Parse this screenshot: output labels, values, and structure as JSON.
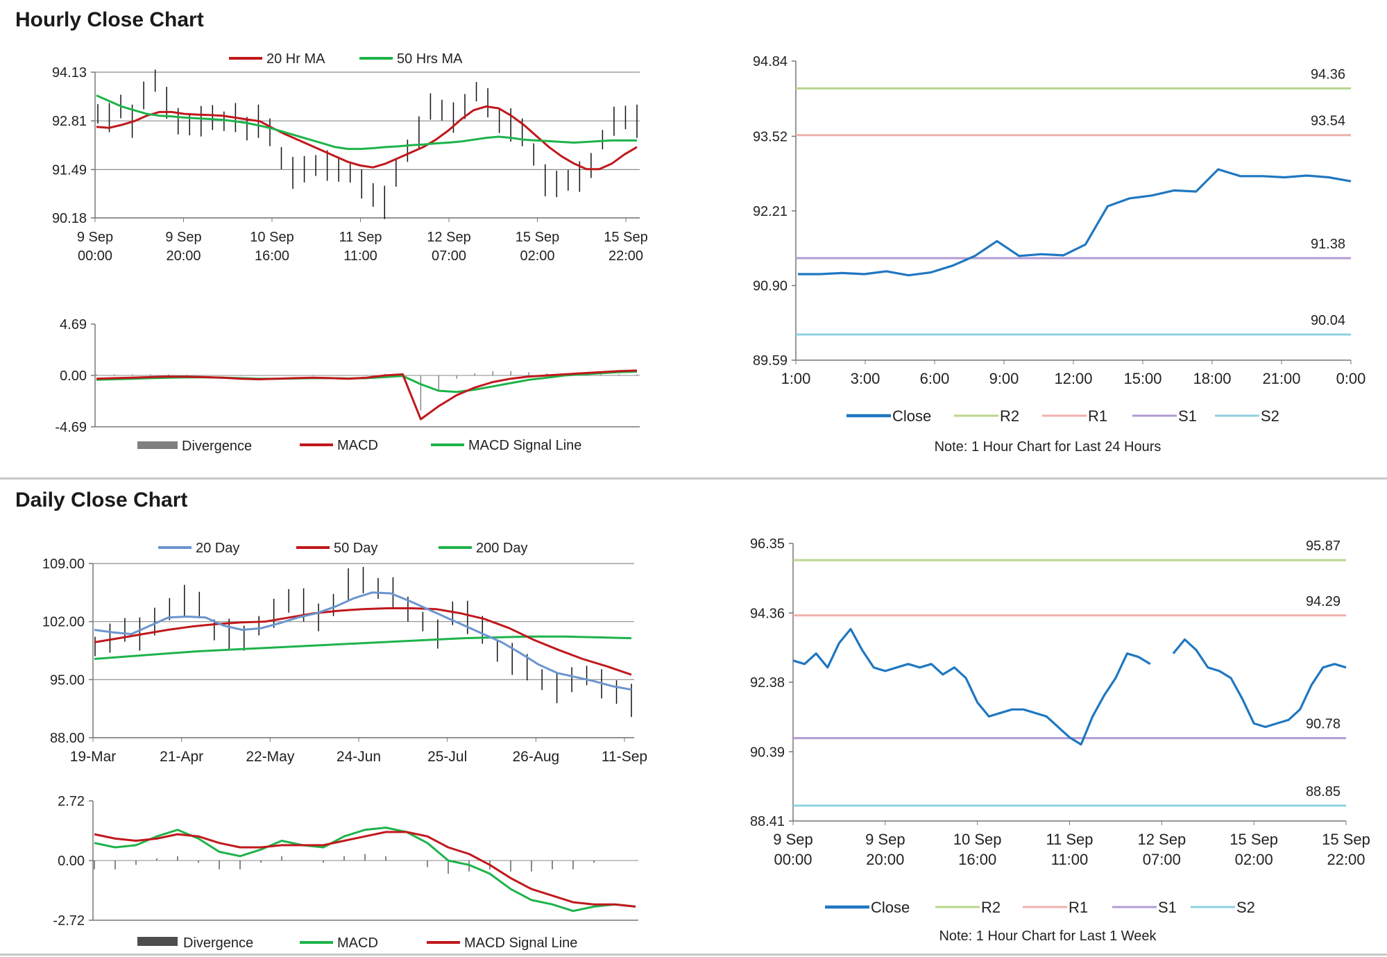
{
  "sections": {
    "hourly_title": "Hourly Close Chart",
    "daily_title": "Daily Close Chart"
  },
  "colors": {
    "close": "#1f77c1",
    "r2": "#b8d68c",
    "r1": "#f0b0ac",
    "s1": "#b39bd4",
    "s2": "#8fd0e0",
    "ma_red": "#c0181c",
    "ma_green": "#1db34a",
    "ma_blue": "#6b95cf",
    "divergence": "#808080",
    "grid": "#8c8c8c"
  },
  "chart_data": [
    {
      "id": "hourly_price",
      "type": "line",
      "legend": [
        {
          "name": "20 Hr MA",
          "color": "#c0181c"
        },
        {
          "name": "50 Hrs MA",
          "color": "#1db34a"
        }
      ],
      "yticks": [
        "94.13",
        "92.81",
        "91.49",
        "90.18"
      ],
      "ylim": [
        90.18,
        94.13
      ],
      "xticks": [
        [
          "9 Sep",
          "00:00"
        ],
        [
          "9 Sep",
          "20:00"
        ],
        [
          "10 Sep",
          "16:00"
        ],
        [
          "11 Sep",
          "11:00"
        ],
        [
          "12 Sep",
          "07:00"
        ],
        [
          "15 Sep",
          "02:00"
        ],
        [
          "15 Sep",
          "22:00"
        ]
      ],
      "price": [
        93.0,
        92.9,
        93.2,
        92.8,
        93.5,
        93.9,
        93.3,
        92.8,
        92.7,
        92.8,
        92.9,
        92.8,
        92.9,
        92.6,
        92.8,
        92.5,
        91.8,
        91.4,
        91.5,
        91.6,
        91.6,
        91.5,
        91.4,
        91.1,
        90.8,
        90.6,
        91.4,
        92.0,
        92.5,
        93.2,
        93.1,
        92.9,
        93.2,
        93.6,
        93.3,
        92.8,
        92.7,
        92.5,
        91.9,
        91.2,
        91.1,
        91.2,
        91.3,
        91.6,
        92.3,
        92.8,
        92.9,
        92.8
      ],
      "series": [
        {
          "name": "20 Hr MA",
          "values": [
            92.65,
            92.62,
            92.7,
            92.8,
            92.95,
            93.05,
            93.05,
            93.0,
            92.98,
            92.97,
            92.95,
            92.9,
            92.85,
            92.8,
            92.62,
            92.45,
            92.3,
            92.15,
            92.0,
            91.85,
            91.7,
            91.6,
            91.55,
            91.65,
            91.8,
            91.95,
            92.1,
            92.3,
            92.55,
            92.85,
            93.1,
            93.2,
            93.15,
            92.95,
            92.7,
            92.4,
            92.1,
            91.85,
            91.65,
            91.5,
            91.5,
            91.65,
            91.9,
            92.1
          ]
        },
        {
          "name": "50 Hrs MA",
          "values": [
            93.5,
            93.35,
            93.2,
            93.1,
            93.0,
            92.95,
            92.93,
            92.9,
            92.88,
            92.86,
            92.84,
            92.8,
            92.75,
            92.68,
            92.6,
            92.5,
            92.4,
            92.3,
            92.2,
            92.1,
            92.05,
            92.05,
            92.07,
            92.1,
            92.12,
            92.15,
            92.17,
            92.2,
            92.22,
            92.25,
            92.3,
            92.35,
            92.38,
            92.35,
            92.3,
            92.28,
            92.26,
            92.24,
            92.22,
            92.24,
            92.26,
            92.28,
            92.28,
            92.28
          ]
        }
      ]
    },
    {
      "id": "hourly_macd",
      "type": "line",
      "legend": [
        {
          "name": "Divergence",
          "color": "#808080"
        },
        {
          "name": "MACD",
          "color": "#c0181c"
        },
        {
          "name": "MACD Signal Line",
          "color": "#1db34a"
        }
      ],
      "yticks": [
        "4.69",
        "0.00",
        "-4.69"
      ],
      "ylim": [
        -4.69,
        4.69
      ],
      "series": [
        {
          "name": "MACD",
          "values": [
            -0.3,
            -0.25,
            -0.2,
            -0.15,
            -0.1,
            -0.12,
            -0.15,
            -0.2,
            -0.3,
            -0.35,
            -0.3,
            -0.25,
            -0.2,
            -0.25,
            -0.3,
            -0.2,
            0.0,
            0.1,
            -4.0,
            -2.8,
            -1.8,
            -1.1,
            -0.6,
            -0.3,
            -0.1,
            0.0,
            0.1,
            0.2,
            0.3,
            0.4,
            0.45
          ]
        },
        {
          "name": "MACD Signal Line",
          "values": [
            -0.4,
            -0.35,
            -0.3,
            -0.25,
            -0.2,
            -0.18,
            -0.18,
            -0.2,
            -0.25,
            -0.3,
            -0.3,
            -0.28,
            -0.25,
            -0.25,
            -0.28,
            -0.25,
            -0.15,
            -0.05,
            -0.8,
            -1.4,
            -1.5,
            -1.3,
            -1.0,
            -0.7,
            -0.4,
            -0.2,
            0.0,
            0.1,
            0.2,
            0.3,
            0.35
          ]
        }
      ]
    },
    {
      "id": "hourly_pivot",
      "type": "line",
      "title": "",
      "yticks": [
        "94.84",
        "93.52",
        "92.21",
        "90.90",
        "89.59"
      ],
      "ylim": [
        89.59,
        94.84
      ],
      "xticks": [
        "1:00",
        "3:00",
        "6:00",
        "9:00",
        "12:00",
        "15:00",
        "18:00",
        "21:00",
        "0:00"
      ],
      "levels": [
        {
          "name": "R2",
          "value": 94.36,
          "label": "94.36"
        },
        {
          "name": "R1",
          "value": 93.54,
          "label": "93.54"
        },
        {
          "name": "S1",
          "value": 91.38,
          "label": "91.38"
        },
        {
          "name": "S2",
          "value": 90.04,
          "label": "90.04"
        }
      ],
      "close": [
        91.1,
        91.1,
        91.12,
        91.1,
        91.15,
        91.08,
        91.13,
        91.25,
        91.42,
        91.68,
        91.42,
        91.45,
        91.43,
        91.62,
        92.29,
        92.43,
        92.48,
        92.57,
        92.55,
        92.94,
        92.82,
        92.82,
        92.8,
        92.83,
        92.8,
        92.73
      ],
      "legend": [
        "Close",
        "R2",
        "R1",
        "S1",
        "S2"
      ],
      "note": "Note: 1 Hour Chart for Last 24 Hours"
    },
    {
      "id": "daily_price",
      "type": "line",
      "legend": [
        {
          "name": "20 Day",
          "color": "#6b95cf"
        },
        {
          "name": "50 Day",
          "color": "#c0181c"
        },
        {
          "name": "200 Day",
          "color": "#1db34a"
        }
      ],
      "yticks": [
        "109.00",
        "102.00",
        "95.00",
        "88.00"
      ],
      "ylim": [
        88.0,
        109.0
      ],
      "xticks": [
        "19-Mar",
        "21-Apr",
        "22-May",
        "24-Jun",
        "25-Jul",
        "26-Aug",
        "11-Sep"
      ],
      "price": [
        99.0,
        100.0,
        101.0,
        100.5,
        102.0,
        103.5,
        104.5,
        104.0,
        101.0,
        100.5,
        100.0,
        101.5,
        103.0,
        104.5,
        104.0,
        102.5,
        104.0,
        106.5,
        107.0,
        106.0,
        105.5,
        103.5,
        102.0,
        100.5,
        103.0,
        102.5,
        101.0,
        98.5,
        97.5,
        96.5,
        95.0,
        94.0,
        95.0,
        95.5,
        94.5,
        93.5,
        92.5
      ],
      "series": [
        {
          "name": "20 Day",
          "values": [
            101.0,
            100.7,
            100.5,
            101.5,
            102.5,
            102.6,
            102.5,
            101.5,
            101.0,
            101.2,
            101.8,
            102.5,
            103.0,
            103.8,
            104.8,
            105.5,
            105.4,
            104.5,
            103.5,
            102.5,
            101.5,
            100.5,
            99.5,
            98.2,
            96.8,
            95.8,
            95.3,
            94.8,
            94.2,
            93.8
          ]
        },
        {
          "name": "50 Day",
          "values": [
            99.5,
            100.0,
            100.5,
            101.0,
            101.4,
            101.7,
            101.9,
            102.0,
            102.5,
            103.0,
            103.3,
            103.5,
            103.6,
            103.6,
            103.5,
            103.0,
            102.3,
            101.2,
            99.8,
            98.6,
            97.5,
            96.6,
            95.6
          ]
        },
        {
          "name": "200 Day",
          "values": [
            97.5,
            97.8,
            98.1,
            98.4,
            98.6,
            98.8,
            99.0,
            99.2,
            99.4,
            99.6,
            99.8,
            100.0,
            100.1,
            100.2,
            100.2,
            100.1,
            100.0
          ]
        }
      ]
    },
    {
      "id": "daily_macd",
      "type": "line",
      "legend": [
        {
          "name": "Divergence",
          "color": "#4d4d4d"
        },
        {
          "name": "MACD",
          "color": "#1db34a"
        },
        {
          "name": "MACD Signal Line",
          "color": "#c0181c"
        }
      ],
      "yticks": [
        "2.72",
        "0.00",
        "-2.72"
      ],
      "ylim": [
        -2.72,
        2.72
      ],
      "series": [
        {
          "name": "MACD",
          "values": [
            0.8,
            0.6,
            0.7,
            1.1,
            1.4,
            1.0,
            0.4,
            0.2,
            0.5,
            0.9,
            0.7,
            0.6,
            1.1,
            1.4,
            1.5,
            1.3,
            0.8,
            0.0,
            -0.2,
            -0.6,
            -1.3,
            -1.8,
            -2.0,
            -2.3,
            -2.1,
            -2.0,
            -2.1
          ]
        },
        {
          "name": "MACD Signal Line",
          "values": [
            1.2,
            1.0,
            0.9,
            1.0,
            1.2,
            1.1,
            0.8,
            0.6,
            0.6,
            0.7,
            0.7,
            0.7,
            0.9,
            1.1,
            1.3,
            1.3,
            1.1,
            0.6,
            0.3,
            -0.2,
            -0.8,
            -1.3,
            -1.6,
            -1.9,
            -2.0,
            -2.0,
            -2.1
          ]
        }
      ]
    },
    {
      "id": "daily_pivot",
      "type": "line",
      "title": "",
      "yticks": [
        "96.35",
        "94.36",
        "92.38",
        "90.39",
        "88.41"
      ],
      "ylim": [
        88.41,
        96.35
      ],
      "xticks": [
        [
          "9 Sep",
          "00:00"
        ],
        [
          "9 Sep",
          "20:00"
        ],
        [
          "10 Sep",
          "16:00"
        ],
        [
          "11 Sep",
          "11:00"
        ],
        [
          "12 Sep",
          "07:00"
        ],
        [
          "15 Sep",
          "02:00"
        ],
        [
          "15 Sep",
          "22:00"
        ]
      ],
      "levels": [
        {
          "name": "R2",
          "value": 95.87,
          "label": "95.87"
        },
        {
          "name": "R1",
          "value": 94.29,
          "label": "94.29"
        },
        {
          "name": "S1",
          "value": 90.78,
          "label": "90.78"
        },
        {
          "name": "S2",
          "value": 88.85,
          "label": "88.85"
        }
      ],
      "close": [
        93.0,
        92.9,
        93.2,
        92.8,
        93.5,
        93.9,
        93.3,
        92.8,
        92.7,
        92.8,
        92.9,
        92.8,
        92.9,
        92.6,
        92.8,
        92.5,
        91.8,
        91.4,
        91.5,
        91.6,
        91.6,
        91.5,
        91.4,
        91.1,
        90.8,
        90.6,
        91.4,
        92.0,
        92.5,
        93.2,
        93.1,
        92.9,
        null,
        93.2,
        93.6,
        93.3,
        92.8,
        92.7,
        92.5,
        91.9,
        91.2,
        91.1,
        91.2,
        91.3,
        91.6,
        92.3,
        92.8,
        92.9,
        92.8
      ],
      "legend": [
        "Close",
        "R2",
        "R1",
        "S1",
        "S2"
      ],
      "note": "Note: 1 Hour Chart for Last 1 Week"
    }
  ]
}
